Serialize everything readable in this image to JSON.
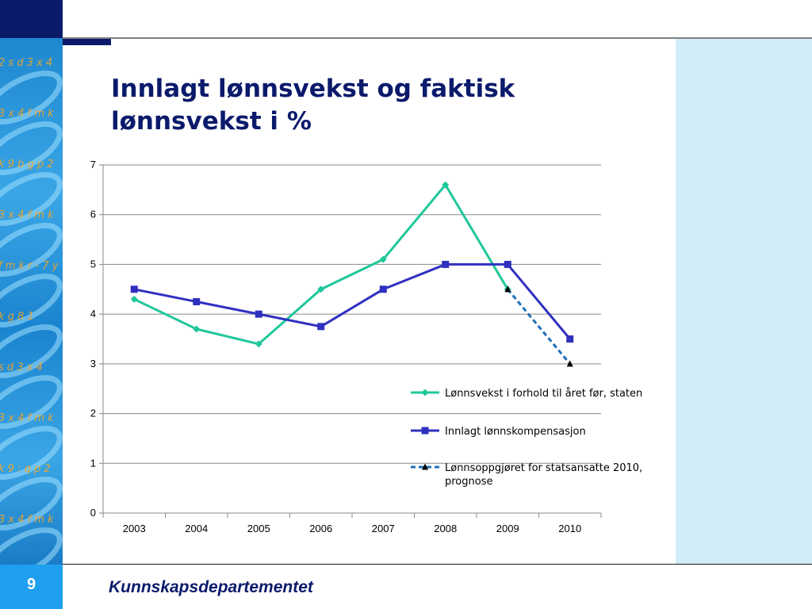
{
  "slide": {
    "title_lines": [
      "Innlagt lønnsvekst og faktisk",
      "lønnsvekst i %"
    ],
    "page_number": "9",
    "footer": "Kunnskapsdepartementet",
    "decor_text": [
      "2 s d 3 x 4",
      "3 x 4 f m k",
      "k 9 b g p 2",
      "3 x 4 f m k",
      "f m k r - 7 y",
      "k g   8 1",
      "s d 3 x 4",
      "3 x 4 f m k",
      "k 9 :  q p 2",
      "3 x 4 f m k"
    ]
  },
  "colors": {
    "navy": "#0b1a6b",
    "series_green": "#1fc79a",
    "series_blue": "#3030c0",
    "series_dashed": "#1f6fb8",
    "panel": "#d2ecfa"
  },
  "chart_data": {
    "type": "line",
    "categories": [
      "2003",
      "2004",
      "2005",
      "2006",
      "2007",
      "2008",
      "2009",
      "2010"
    ],
    "ylim": [
      0,
      7
    ],
    "yticks": [
      "0",
      "1",
      "2",
      "3",
      "4",
      "5",
      "6",
      "7"
    ],
    "grid": true,
    "legend_position": "inside-right",
    "series": [
      {
        "name": "Lønnsvekst i forhold til året før, staten",
        "marker": "diamond",
        "color": "#1fc79a",
        "values": [
          4.3,
          3.7,
          3.4,
          4.5,
          5.1,
          6.6,
          4.5,
          null
        ]
      },
      {
        "name": "Innlagt lønnskompensasjon",
        "marker": "square",
        "color": "#3030c0",
        "values": [
          4.5,
          4.25,
          4.0,
          3.75,
          4.5,
          5.0,
          5.0,
          3.5
        ]
      },
      {
        "name": "Lønnsoppgjøret for statsansatte 2010, prognose",
        "legend_lines": [
          "Lønnsoppgjøret for statsansatte 2010,",
          "prognose"
        ],
        "marker": "triangle",
        "dashed": true,
        "color": "#1f6fb8",
        "values": [
          null,
          null,
          null,
          null,
          null,
          null,
          4.5,
          3.0
        ]
      }
    ]
  }
}
